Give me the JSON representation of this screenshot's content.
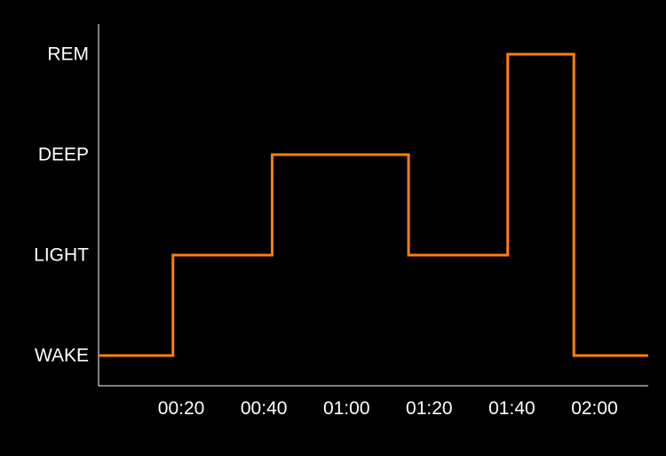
{
  "chart_data": {
    "type": "line",
    "step": true,
    "title": "",
    "xlabel": "",
    "ylabel": "",
    "y_categories": [
      "WAKE",
      "LIGHT",
      "DEEP",
      "REM"
    ],
    "x_ticks": [
      "00:20",
      "00:40",
      "01:00",
      "01:20",
      "01:40",
      "02:00"
    ],
    "x_tick_minutes": [
      20,
      40,
      60,
      80,
      100,
      120
    ],
    "xlim_minutes": [
      0,
      133
    ],
    "grid": false,
    "legend": "none",
    "line_color": "#ff7f0e",
    "axis_color": "#ffffff",
    "text_color": "#ffffff",
    "background": "#000000",
    "series": [
      {
        "stages": [
          {
            "start_minutes": 0,
            "end_minutes": 18,
            "stage": "WAKE"
          },
          {
            "start_minutes": 18,
            "end_minutes": 42,
            "stage": "LIGHT"
          },
          {
            "start_minutes": 42,
            "end_minutes": 75,
            "stage": "DEEP"
          },
          {
            "start_minutes": 75,
            "end_minutes": 99,
            "stage": "LIGHT"
          },
          {
            "start_minutes": 99,
            "end_minutes": 115,
            "stage": "REM"
          },
          {
            "start_minutes": 115,
            "end_minutes": 133,
            "stage": "WAKE"
          }
        ]
      }
    ]
  }
}
